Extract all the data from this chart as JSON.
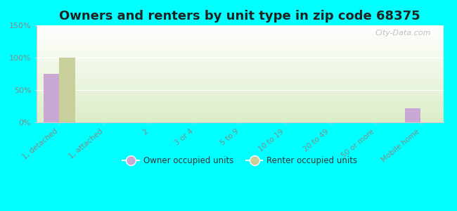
{
  "title": "Owners and renters by unit type in zip code 68375",
  "categories": [
    "1, detached",
    "1, attached",
    "2",
    "3 or 4",
    "5 to 9",
    "10 to 19",
    "20 to 49",
    "50 or more",
    "Mobile home"
  ],
  "owner_values": [
    75,
    0,
    0,
    0,
    0,
    0,
    0,
    0,
    22
  ],
  "renter_values": [
    100,
    0,
    0,
    0,
    0,
    0,
    0,
    0,
    0
  ],
  "owner_color": "#c9a8d4",
  "renter_color": "#c8cf9a",
  "background_color": "#00ffff",
  "plot_bg_color": "#e8f0d0",
  "ylim": [
    0,
    150
  ],
  "yticks": [
    0,
    50,
    100,
    150
  ],
  "ytick_labels": [
    "0%",
    "50%",
    "100%",
    "150%"
  ],
  "bar_width": 0.35,
  "title_fontsize": 13,
  "watermark": "City-Data.com",
  "grid_color": "#ffffff",
  "tick_label_color": "#888888",
  "spine_color": "#cccccc"
}
